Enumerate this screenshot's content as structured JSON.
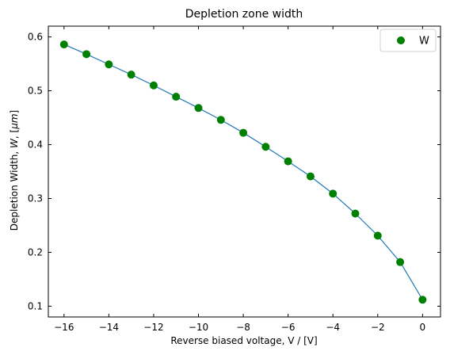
{
  "chart_data": {
    "type": "line",
    "title": "Depletion zone width",
    "xlabel": "Reverse biased voltage, V / [V]",
    "ylabel_parts": [
      "Depletion Width, ",
      "W",
      ", [",
      "μm",
      "]"
    ],
    "xlim": [
      -16.7,
      0.8
    ],
    "ylim": [
      0.08,
      0.62
    ],
    "xticks": [
      -16,
      -14,
      -12,
      -10,
      -8,
      -6,
      -4,
      -2,
      0
    ],
    "xtick_labels": [
      "−16",
      "−14",
      "−12",
      "−10",
      "−8",
      "−6",
      "−4",
      "−2",
      "0"
    ],
    "yticks": [
      0.1,
      0.2,
      0.3,
      0.4,
      0.5,
      0.6
    ],
    "ytick_labels": [
      "0.1",
      "0.2",
      "0.3",
      "0.4",
      "0.5",
      "0.6"
    ],
    "grid": false,
    "legend_position": "top-right",
    "series": [
      {
        "name": "W",
        "line_color": "#1f77b4",
        "marker_color": "#008000",
        "x": [
          -16,
          -15,
          -14,
          -13,
          -12,
          -11,
          -10,
          -9,
          -8,
          -7,
          -6,
          -5,
          -4,
          -3,
          -2,
          -1,
          0
        ],
        "y": [
          0.586,
          0.568,
          0.549,
          0.53,
          0.51,
          0.489,
          0.468,
          0.446,
          0.422,
          0.396,
          0.369,
          0.341,
          0.309,
          0.272,
          0.231,
          0.182,
          0.112
        ]
      }
    ]
  }
}
